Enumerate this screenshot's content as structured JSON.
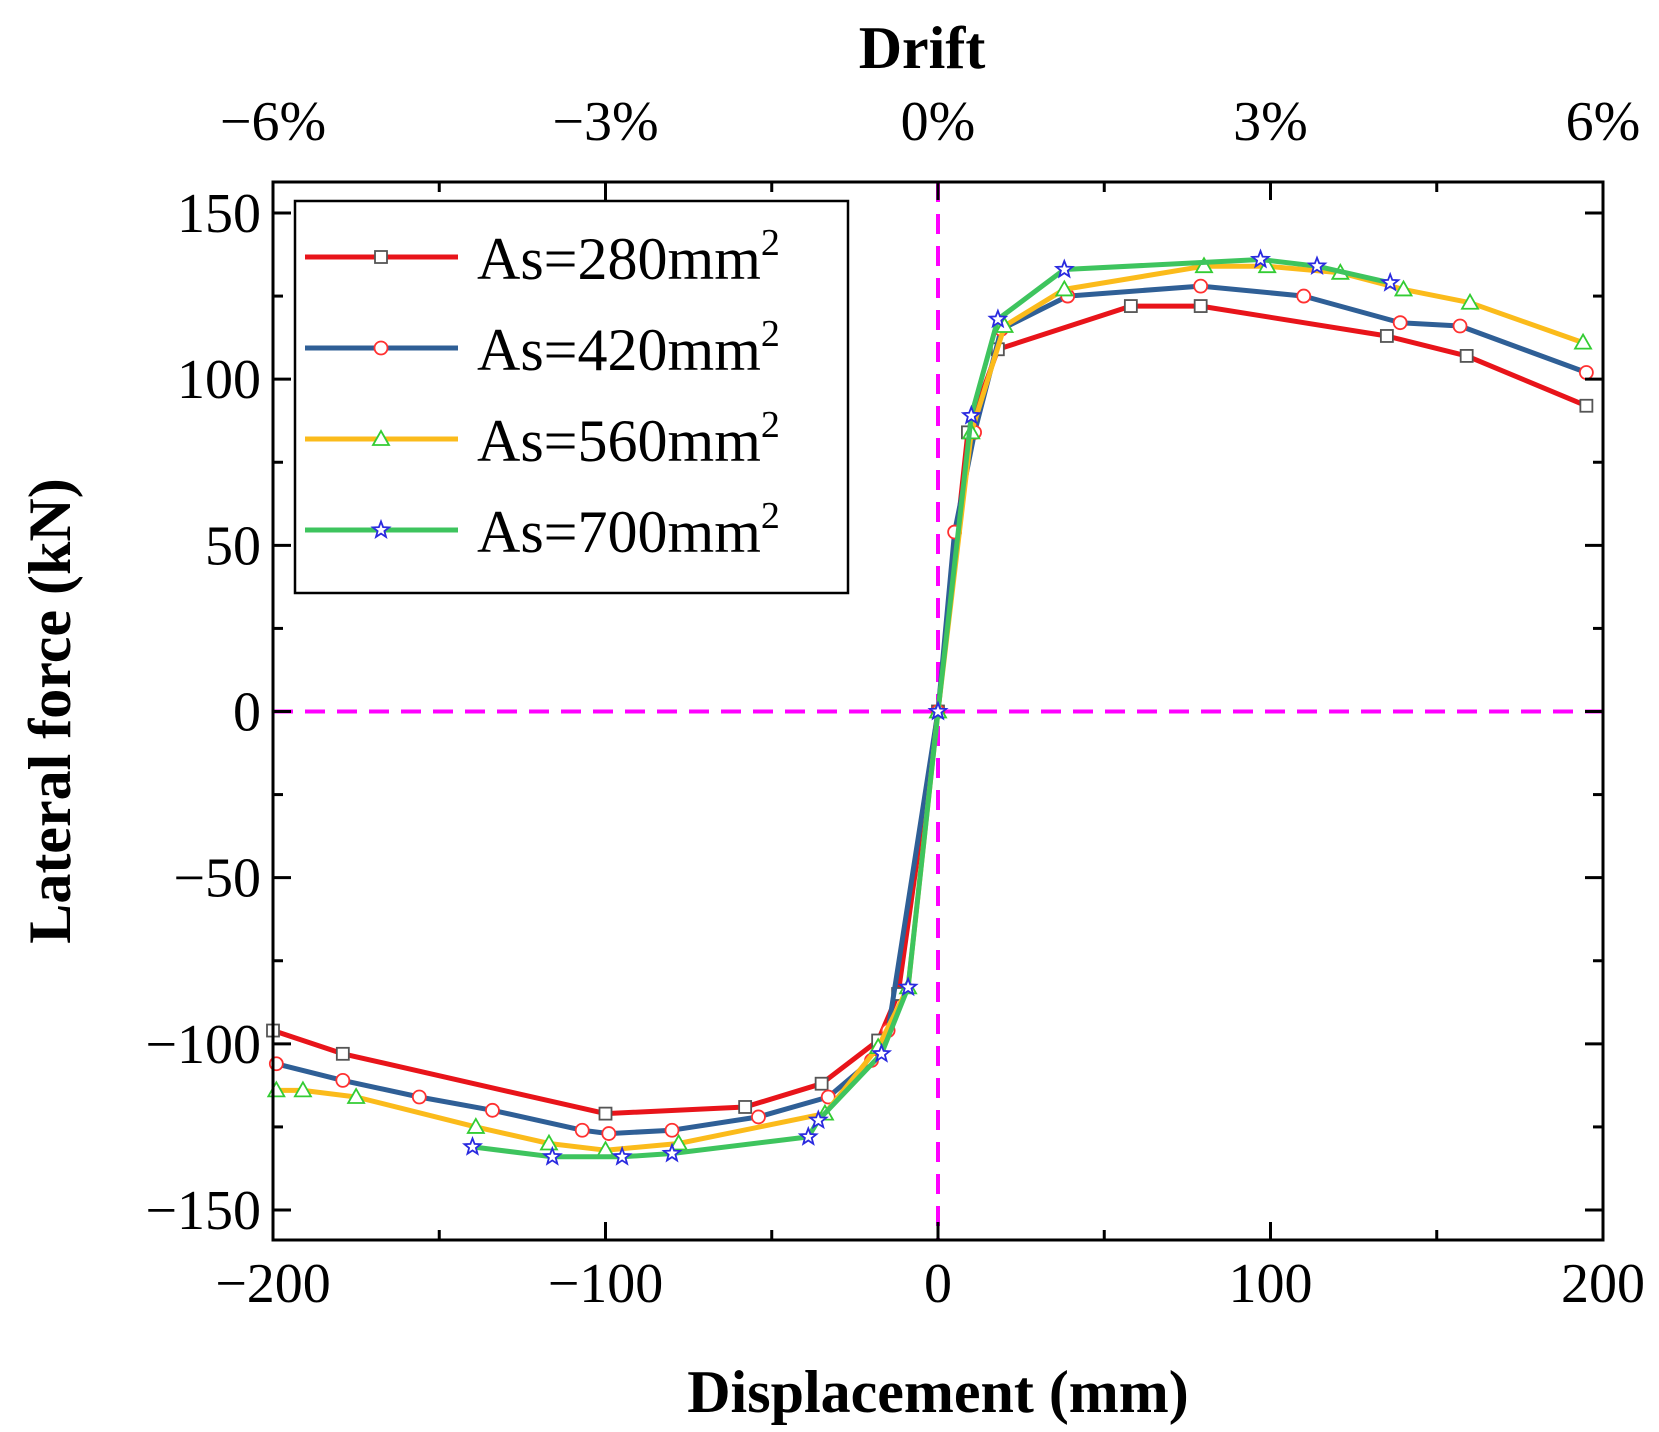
{
  "chart_data": {
    "type": "line",
    "xlabel": "Displacement (mm)",
    "ylabel": "Lateral force (kN)",
    "top_xlabel": "Drift",
    "xlim": [
      -200,
      200
    ],
    "ylim": [
      -160,
      160
    ],
    "x_ticks": [
      -200,
      -100,
      0,
      100,
      200
    ],
    "x_tick_labels": [
      "−200",
      "−100",
      "0",
      "100",
      "200"
    ],
    "y_ticks": [
      -150,
      -100,
      -50,
      0,
      50,
      100,
      150
    ],
    "y_tick_labels": [
      "−150",
      "−100",
      "−50",
      "0",
      "50",
      "100",
      "150"
    ],
    "top_ticks": [
      -200,
      -100,
      0,
      100,
      200
    ],
    "top_tick_labels": [
      "−6%",
      "−3%",
      "0%",
      "3%",
      "6%"
    ],
    "reference_lines": [
      {
        "orientation": "vertical",
        "value": 0,
        "color": "#ff00ff",
        "style": "dashed"
      },
      {
        "orientation": "horizontal",
        "value": 0,
        "color": "#ff00ff",
        "style": "dashed"
      }
    ],
    "legend_position": "top-left",
    "series": [
      {
        "name": "As=280mm",
        "name_sup": "2",
        "color": "#e8141a",
        "marker": "square",
        "marker_color": "#555555",
        "x": [
          -200,
          -179,
          -100,
          -58,
          -35,
          -18,
          -12,
          0,
          9,
          18,
          58,
          79,
          135,
          159,
          195
        ],
        "y": [
          -96,
          -103,
          -121,
          -119,
          -112,
          -99,
          -85,
          0,
          84,
          109,
          122,
          122,
          113,
          107,
          92
        ]
      },
      {
        "name": "As=420mm",
        "name_sup": "2",
        "color": "#2f5f96",
        "marker": "circle",
        "marker_color": "#ff3030",
        "x": [
          -199,
          -179,
          -156,
          -134,
          -107,
          -99,
          -80,
          -54,
          -33,
          -20,
          -15,
          0,
          5,
          11,
          19,
          39,
          79,
          110,
          139,
          157,
          195
        ],
        "y": [
          -106,
          -111,
          -116,
          -120,
          -126,
          -127,
          -126,
          -122,
          -116,
          -105,
          -96,
          0,
          54,
          84,
          115,
          125,
          128,
          125,
          117,
          116,
          102
        ]
      },
      {
        "name": "As=560mm",
        "name_sup": "2",
        "color": "#fbbb1b",
        "marker": "triangle",
        "marker_color": "#33cc33",
        "x": [
          -199,
          -191,
          -175,
          -139,
          -117,
          -100,
          -78,
          -34,
          -18,
          -9,
          0,
          10,
          20,
          38,
          80,
          99,
          121,
          140,
          160,
          194
        ],
        "y": [
          -114,
          -114,
          -116,
          -125,
          -130,
          -132,
          -130,
          -121,
          -101,
          -83,
          0,
          84,
          116,
          127,
          134,
          134,
          132,
          127,
          123,
          111
        ]
      },
      {
        "name": "As=700mm",
        "name_sup": "2",
        "color": "#3ec45e",
        "marker": "star",
        "marker_color": "#2a2adf",
        "x": [
          -140,
          -116,
          -95,
          -80,
          -39,
          -36,
          -17,
          -9,
          0,
          10,
          18,
          38,
          97,
          114,
          136
        ],
        "y": [
          -131,
          -134,
          -134,
          -133,
          -128,
          -123,
          -103,
          -83,
          0,
          89,
          118,
          133,
          136,
          134,
          129
        ]
      }
    ]
  }
}
